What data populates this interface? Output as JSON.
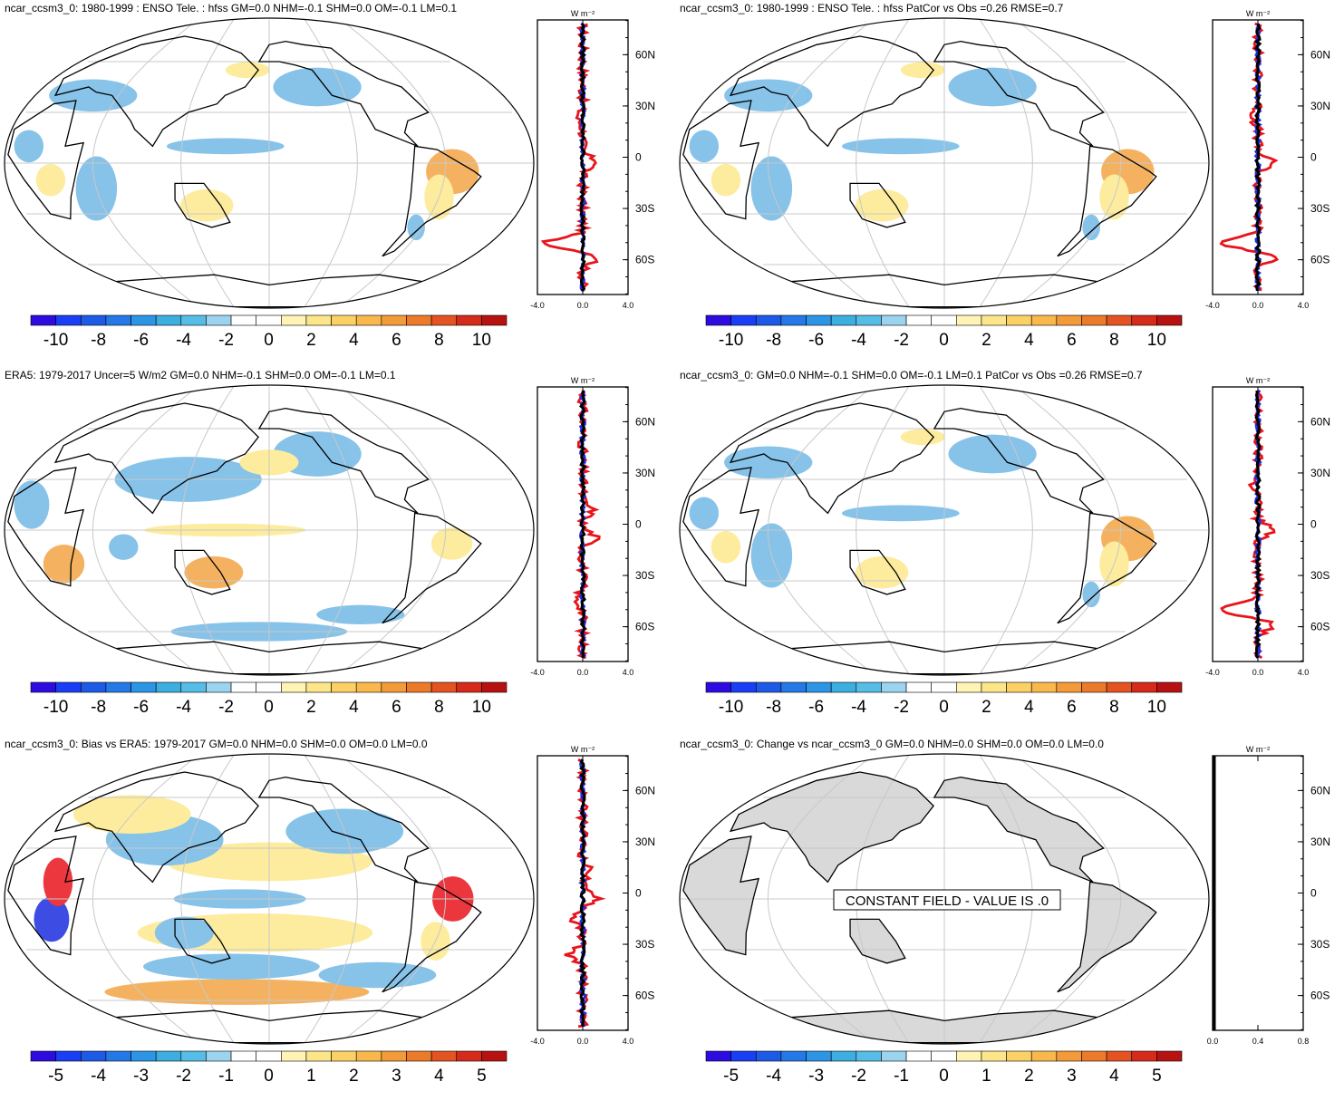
{
  "colors": {
    "land_gray": "#d9d9d9",
    "blue_pos": "#73b8e6",
    "yellow": "#fde98c",
    "orange": "#f3a546",
    "red_line": "#e8141c",
    "blue_line": "#1c2ee0",
    "black_line": "#000000",
    "grid": "#c8c8c8"
  },
  "colorbar_palette": [
    "#2c0ce0",
    "#1a3ef5",
    "#1d5ae6",
    "#2478e8",
    "#2c95e6",
    "#3caedf",
    "#55bde6",
    "#9cd4ef",
    "#ffffff",
    "#ffffff",
    "#fff4b5",
    "#fde58a",
    "#fbd166",
    "#f8b84c",
    "#f39a39",
    "#ec7a2b",
    "#e45322",
    "#d62a1a",
    "#b81111"
  ],
  "panels": [
    {
      "id": "model-enso",
      "title": "ncar_ccsm3_0: 1980-1999 : ENSO Tele. : hfss GM=0.0 NHM=-0.1 SHM=0.0 OM=-0.1 LM=0.1",
      "colorbar_labels": [
        "-10",
        "-8",
        "-6",
        "-4",
        "-2",
        "0",
        "2",
        "4",
        "6",
        "8",
        "10"
      ],
      "lat_labels": [
        "60N",
        "30N",
        "0",
        "30S",
        "60S"
      ],
      "profile_xlabels": [
        "-4.0",
        "0.0",
        "4.0"
      ],
      "unit": "W m⁻²",
      "constant_field": ""
    },
    {
      "id": "model-enso-patcor",
      "title": "ncar_ccsm3_0: 1980-1999 : ENSO Tele. : hfss PatCor vs Obs =0.26 RMSE=0.7",
      "colorbar_labels": [
        "-10",
        "-8",
        "-6",
        "-4",
        "-2",
        "0",
        "2",
        "4",
        "6",
        "8",
        "10"
      ],
      "lat_labels": [
        "60N",
        "30N",
        "0",
        "30S",
        "60S"
      ],
      "profile_xlabels": [
        "-4.0",
        "0.0",
        "4.0"
      ],
      "unit": "W m⁻²",
      "constant_field": ""
    },
    {
      "id": "era5",
      "title": "ERA5: 1979-2017 Uncer=5 W/m2 GM=0.0 NHM=-0.1 SHM=0.0 OM=-0.1 LM=0.1",
      "colorbar_labels": [
        "-10",
        "-8",
        "-6",
        "-4",
        "-2",
        "0",
        "2",
        "4",
        "6",
        "8",
        "10"
      ],
      "lat_labels": [
        "60N",
        "30N",
        "0",
        "30S",
        "60S"
      ],
      "profile_xlabels": [
        "-4.0",
        "0.0",
        "4.0"
      ],
      "unit": "W m⁻²",
      "constant_field": ""
    },
    {
      "id": "model-summary",
      "title": "ncar_ccsm3_0: GM=0.0 NHM=-0.1 SHM=0.0 OM=-0.1 LM=0.1 PatCor vs Obs =0.26 RMSE=0.7",
      "colorbar_labels": [
        "-10",
        "-8",
        "-6",
        "-4",
        "-2",
        "0",
        "2",
        "4",
        "6",
        "8",
        "10"
      ],
      "lat_labels": [
        "60N",
        "30N",
        "0",
        "30S",
        "60S"
      ],
      "profile_xlabels": [
        "-4.0",
        "0.0",
        "4.0"
      ],
      "unit": "W m⁻²",
      "constant_field": ""
    },
    {
      "id": "bias",
      "title": "ncar_ccsm3_0: Bias vs ERA5: 1979-2017 GM=0.0 NHM=0.0 SHM=0.0 OM=0.0 LM=0.0",
      "colorbar_labels": [
        "-5",
        "-4",
        "-3",
        "-2",
        "-1",
        "0",
        "1",
        "2",
        "3",
        "4",
        "5"
      ],
      "lat_labels": [
        "60N",
        "30N",
        "0",
        "30S",
        "60S"
      ],
      "profile_xlabels": [
        "-4.0",
        "0.0",
        "4.0"
      ],
      "unit": "W m⁻²",
      "constant_field": ""
    },
    {
      "id": "change",
      "title": "ncar_ccsm3_0: Change vs ncar_ccsm3_0 GM=0.0 NHM=0.0 SHM=0.0 OM=0.0 LM=0.0",
      "colorbar_labels": [
        "-5",
        "-4",
        "-3",
        "-2",
        "-1",
        "0",
        "1",
        "2",
        "3",
        "4",
        "5"
      ],
      "lat_labels": [
        "60N",
        "30N",
        "0",
        "30S",
        "60S"
      ],
      "profile_xlabels": [
        "0.0",
        "0.4",
        "0.8"
      ],
      "unit": "W m⁻²",
      "constant_field": "CONSTANT FIELD - VALUE IS .0"
    }
  ],
  "chart_data": [
    {
      "type": "heatmap",
      "title": "ncar_ccsm3_0: 1980-1999 : ENSO Tele. : hfss GM=0.0 NHM=-0.1 SHM=0.0 OM=-0.1 LM=0.1",
      "colorbar_ticks": [
        -10,
        -8,
        -6,
        -4,
        -2,
        0,
        2,
        4,
        6,
        8,
        10
      ],
      "zonal_profile_xlim": [
        -4,
        4
      ]
    },
    {
      "type": "heatmap",
      "title": "ncar_ccsm3_0: 1980-1999 : ENSO Tele. : hfss PatCor vs Obs =0.26 RMSE=0.7",
      "colorbar_ticks": [
        -10,
        -8,
        -6,
        -4,
        -2,
        0,
        2,
        4,
        6,
        8,
        10
      ],
      "zonal_profile_xlim": [
        -4,
        4
      ]
    },
    {
      "type": "heatmap",
      "title": "ERA5: 1979-2017 Uncer=5 W/m2 GM=0.0 NHM=-0.1 SHM=0.0 OM=-0.1 LM=0.1",
      "colorbar_ticks": [
        -10,
        -8,
        -6,
        -4,
        -2,
        0,
        2,
        4,
        6,
        8,
        10
      ],
      "zonal_profile_xlim": [
        -4,
        4
      ]
    },
    {
      "type": "heatmap",
      "title": "ncar_ccsm3_0: GM=0.0 NHM=-0.1 SHM=0.0 OM=-0.1 LM=0.1 PatCor vs Obs =0.26 RMSE=0.7",
      "colorbar_ticks": [
        -10,
        -8,
        -6,
        -4,
        -2,
        0,
        2,
        4,
        6,
        8,
        10
      ],
      "zonal_profile_xlim": [
        -4,
        4
      ]
    },
    {
      "type": "heatmap",
      "title": "ncar_ccsm3_0: Bias vs ERA5: 1979-2017 GM=0.0 NHM=0.0 SHM=0.0 OM=0.0 LM=0.0",
      "colorbar_ticks": [
        -5,
        -4,
        -3,
        -2,
        -1,
        0,
        1,
        2,
        3,
        4,
        5
      ],
      "zonal_profile_xlim": [
        -4,
        4
      ]
    },
    {
      "type": "heatmap",
      "title": "ncar_ccsm3_0: Change vs ncar_ccsm3_0 GM=0.0 NHM=0.0 SHM=0.0 OM=0.0 LM=0.0",
      "colorbar_ticks": [
        -5,
        -4,
        -3,
        -2,
        -1,
        0,
        1,
        2,
        3,
        4,
        5
      ],
      "zonal_profile_xlim": [
        0,
        1
      ]
    }
  ]
}
